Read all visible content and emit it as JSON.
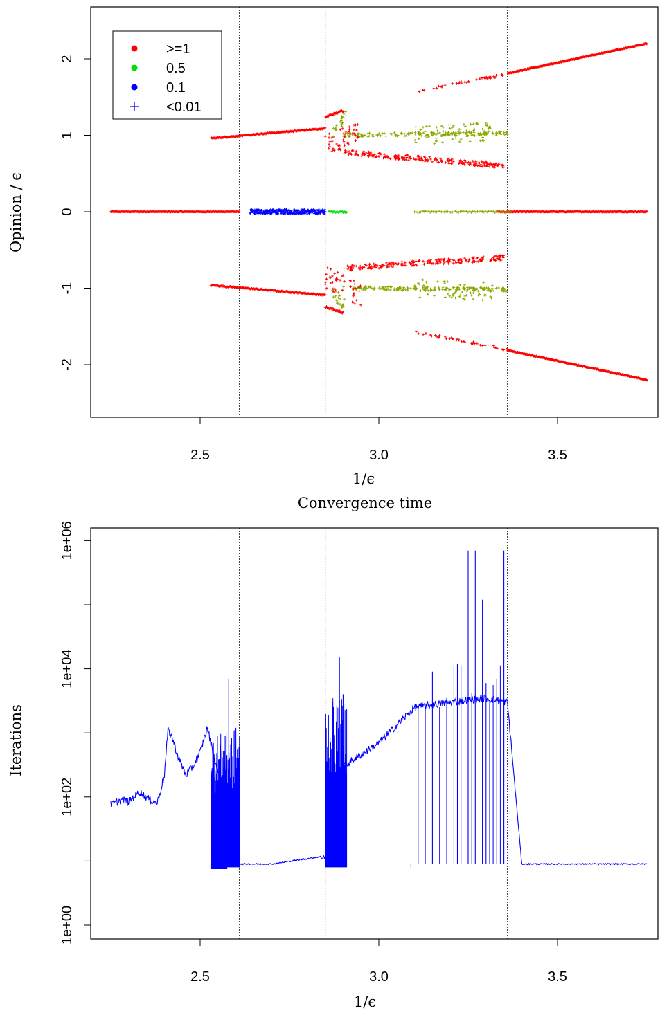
{
  "chart_data": [
    {
      "type": "scatter",
      "title": "",
      "xlabel": "1/ϵ",
      "ylabel": "Opinion / ϵ",
      "xlim": [
        2.2,
        3.8
      ],
      "ylim": [
        -2.7,
        2.7
      ],
      "x_ticks": [
        2.5,
        3.0,
        3.5
      ],
      "x_tick_labels": [
        "2.5",
        "3.0",
        "3.5"
      ],
      "y_ticks": [
        -2,
        -1,
        0,
        1,
        2
      ],
      "y_tick_labels": [
        "-2",
        "-1",
        "0",
        "1",
        "2"
      ],
      "vlines": [
        2.53,
        2.61,
        2.85,
        3.36
      ],
      "legend": {
        "placement": "top-left",
        "entries": [
          {
            "label": ">=1",
            "color": "#ff0000",
            "marker": "dot"
          },
          {
            "label": "0.5",
            "color": "#00dd00",
            "marker": "dot"
          },
          {
            "label": "0.1",
            "color": "#0000ff",
            "marker": "dot"
          },
          {
            "label": "<0.01",
            "color": "#0000ff",
            "marker": "plus"
          }
        ]
      },
      "series": [
        {
          "name": ">=1",
          "color": "#ff0000",
          "segments": [
            {
              "x": [
                2.25,
                2.61
              ],
              "y": [
                0,
                0
              ]
            },
            {
              "x": [
                3.36,
                3.75
              ],
              "y": [
                0,
                0
              ]
            },
            {
              "x": [
                2.53,
                2.85
              ],
              "y": [
                0.96,
                1.09
              ]
            },
            {
              "x": [
                2.53,
                2.85
              ],
              "y": [
                -0.96,
                -1.09
              ]
            },
            {
              "x": [
                2.85,
                2.9
              ],
              "y": [
                1.24,
                1.32
              ]
            },
            {
              "x": [
                2.85,
                2.9
              ],
              "y": [
                -1.24,
                -1.32
              ]
            },
            {
              "x": [
                3.1,
                3.35
              ],
              "y": [
                1.57,
                1.79
              ]
            },
            {
              "x": [
                3.1,
                3.35
              ],
              "y": [
                -1.57,
                -1.79
              ]
            },
            {
              "x": [
                3.36,
                3.75
              ],
              "y": [
                1.81,
                2.2
              ]
            },
            {
              "x": [
                3.36,
                3.75
              ],
              "y": [
                -1.81,
                -2.2
              ]
            },
            {
              "x": [
                2.9,
                3.35
              ],
              "y": [
                0.76,
                0.6
              ]
            },
            {
              "x": [
                2.9,
                3.35
              ],
              "y": [
                -0.72,
                -0.6
              ]
            }
          ]
        },
        {
          "name": "0.5",
          "color": "#00dd00",
          "segments": [
            {
              "x": [
                2.86,
                2.91
              ],
              "y": [
                0,
                0
              ]
            },
            {
              "x": [
                3.1,
                3.36
              ],
              "y": [
                0,
                0
              ]
            },
            {
              "x": [
                2.9,
                3.36
              ],
              "y": [
                1.01,
                1.03
              ]
            },
            {
              "x": [
                2.9,
                3.36
              ],
              "y": [
                -1.01,
                -1.02
              ]
            }
          ]
        },
        {
          "name": "0.1",
          "color": "#0000ff",
          "segments": [
            {
              "x": [
                2.64,
                2.85
              ],
              "y": [
                0,
                0
              ]
            }
          ]
        }
      ]
    },
    {
      "type": "line",
      "title": "Convergence time",
      "xlabel": "1/ϵ",
      "ylabel": "Iterations",
      "log_y": true,
      "xlim": [
        2.2,
        3.8
      ],
      "ylim": [
        0.6,
        1600000
      ],
      "x_ticks": [
        2.5,
        3.0,
        3.5
      ],
      "x_tick_labels": [
        "2.5",
        "3.0",
        "3.5"
      ],
      "y_ticks": [
        1,
        100,
        10000,
        1000000
      ],
      "y_tick_labels": [
        "1e+00",
        "1e+02",
        "1e+04",
        "1e+06"
      ],
      "y_minor_ticks": [
        10,
        1000,
        100000
      ],
      "vlines": [
        2.53,
        2.61,
        2.85,
        3.36
      ],
      "series": [
        {
          "color": "#0000ff",
          "x": [
            2.25,
            2.28,
            2.3,
            2.33,
            2.36,
            2.38,
            2.4,
            2.41,
            2.42,
            2.44,
            2.46,
            2.48,
            2.5,
            2.52,
            2.53,
            2.61,
            2.7,
            2.85,
            2.9,
            3.0,
            3.1,
            3.2,
            3.3,
            3.36,
            3.4,
            3.5,
            3.75
          ],
          "y": [
            75,
            90,
            85,
            120,
            90,
            80,
            220,
            1100,
            900,
            400,
            220,
            300,
            500,
            1200,
            700,
            9,
            9,
            12,
            300,
            700,
            2500,
            3000,
            3500,
            3000,
            9,
            9,
            9
          ]
        },
        {
          "color": "#0000ff",
          "style": "spikes",
          "x": [
            2.53,
            2.57,
            2.58,
            2.6,
            2.85,
            2.87,
            2.89,
            2.9,
            3.09,
            3.15,
            3.22,
            3.25,
            3.27,
            3.29,
            3.3,
            3.33,
            3.35
          ],
          "y": [
            8,
            900,
            7000,
            1200,
            8,
            3000,
            15000,
            4000,
            8,
            9000,
            12000,
            700000,
            700000,
            120000,
            6000,
            7000,
            700000
          ]
        }
      ]
    }
  ],
  "legend_labels": [
    ">=1",
    "0.5",
    "0.1",
    "<0.01"
  ],
  "colors": {
    "red": "#ff0000",
    "green": "#00dd00",
    "olive": "#88aa00",
    "blue": "#0000ff"
  }
}
